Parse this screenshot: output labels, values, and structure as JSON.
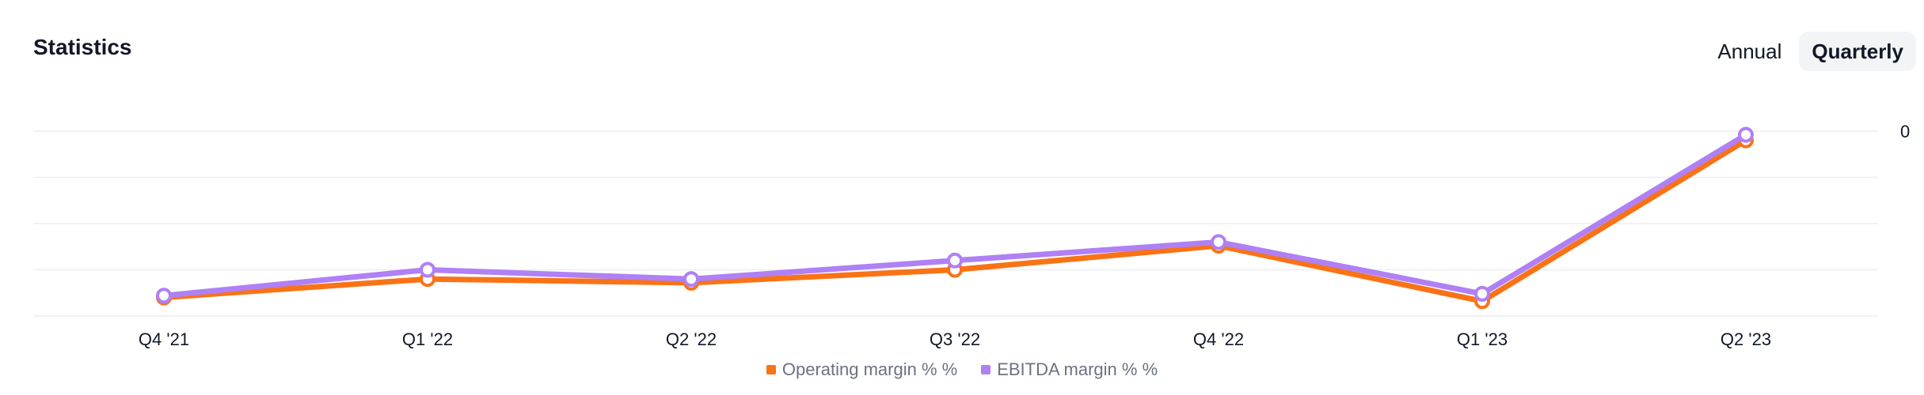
{
  "header": {
    "title": "Statistics",
    "periods": [
      "Annual",
      "Quarterly"
    ],
    "selected_period": "Quarterly"
  },
  "chart_data": {
    "type": "line",
    "title": "",
    "xlabel": "",
    "ylabel": "",
    "categories": [
      "Q4 '21",
      "Q1 '22",
      "Q2 '22",
      "Q3 '22",
      "Q4 '22",
      "Q1 '23",
      "Q2 '23"
    ],
    "y_ticks": [
      0
    ],
    "y_tick_labels": [
      "0"
    ],
    "ylim": [
      -100,
      0
    ],
    "grid": true,
    "legend_position": "bottom-center",
    "series": [
      {
        "name": "Operating margin % %",
        "color": "#f97316",
        "values": [
          -90,
          -80,
          -82,
          -75,
          -62,
          -92,
          -5
        ]
      },
      {
        "name": "EBITDA margin % %",
        "color": "#b080f5",
        "values": [
          -89,
          -75,
          -80,
          -70,
          -60,
          -88,
          -2
        ]
      }
    ]
  }
}
